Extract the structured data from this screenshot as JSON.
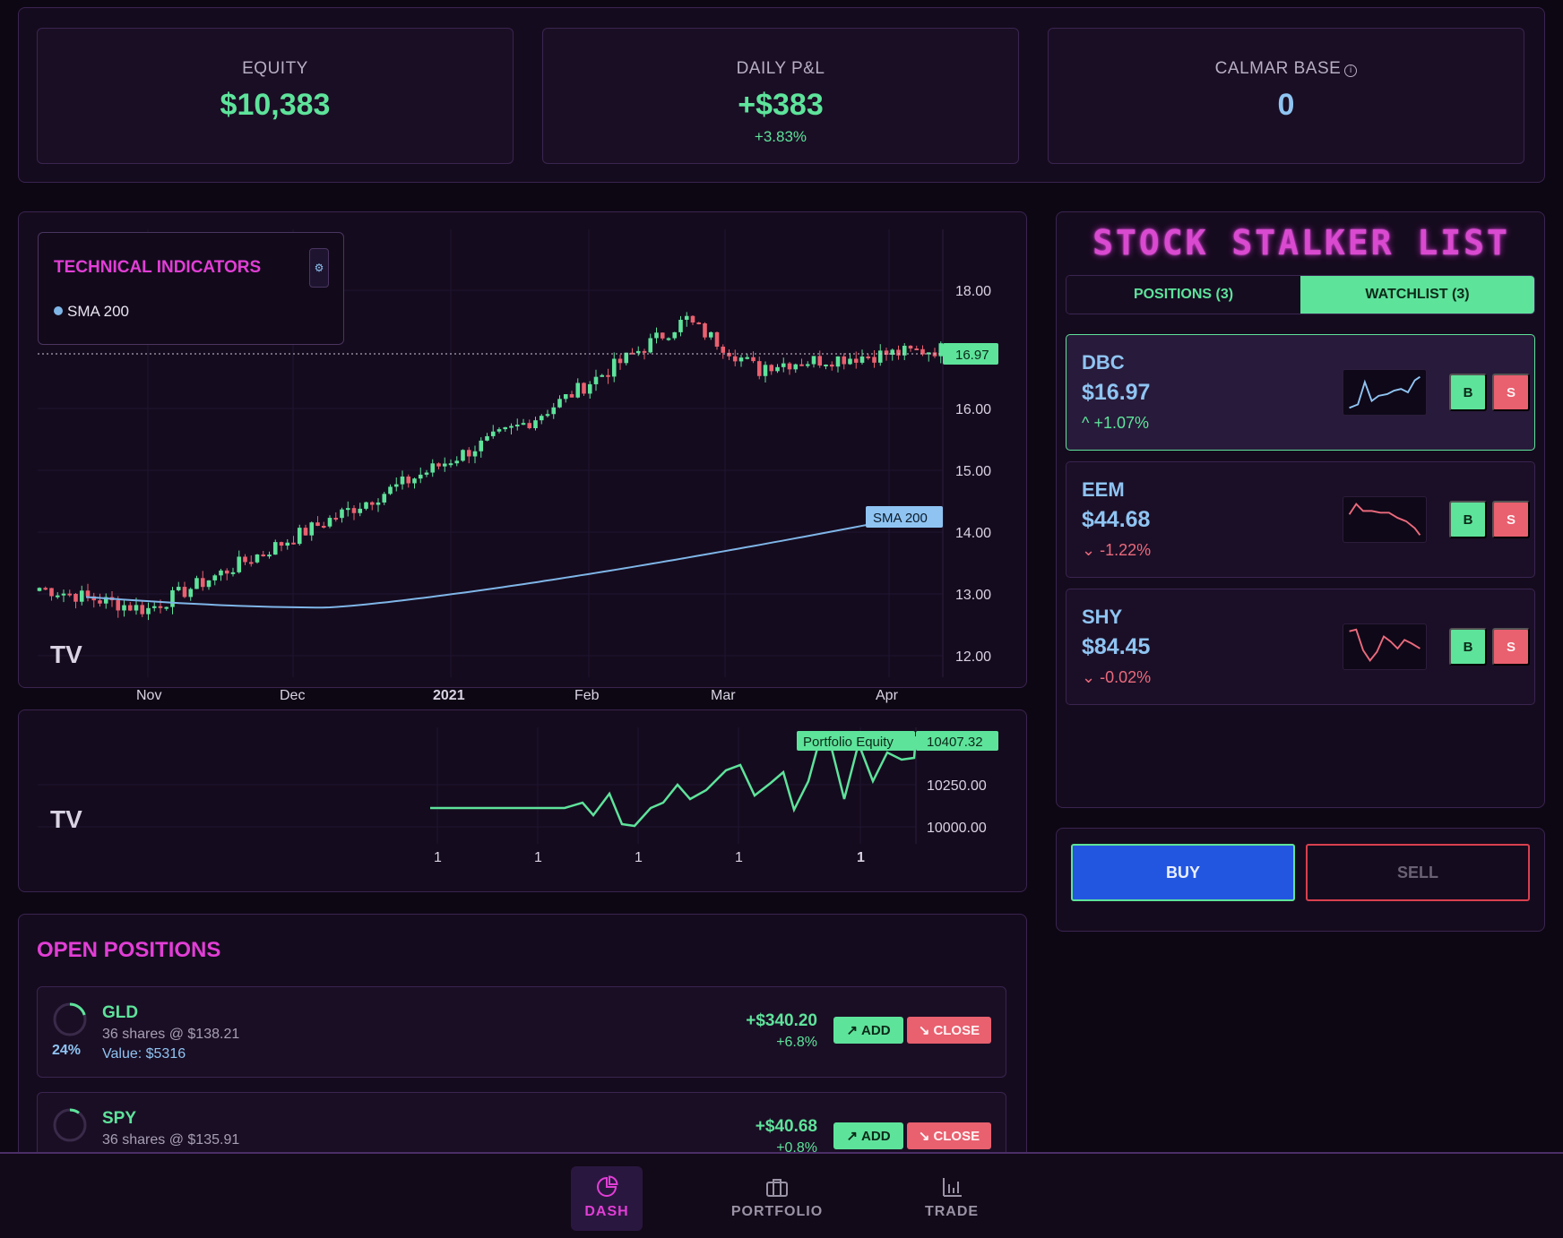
{
  "stats": {
    "equity": {
      "label": "EQUITY",
      "value": "$10,383"
    },
    "daily_pnl": {
      "label": "DAILY P&L",
      "value": "+$383",
      "sub": "+3.83%"
    },
    "calmar": {
      "label": "CALMAR BASE",
      "value": "0",
      "icon": "info-icon"
    }
  },
  "indicators": {
    "title": "TECHNICAL INDICATORS",
    "gear": "⚙",
    "items": [
      "SMA 200"
    ]
  },
  "chart_data": [
    {
      "type": "candlestick",
      "y_ticks": [
        "18.00",
        "16.00",
        "15.00",
        "14.00",
        "13.00",
        "12.00"
      ],
      "x_ticks": [
        "Nov",
        "Dec",
        "2021",
        "Feb",
        "Mar",
        "Apr"
      ],
      "current_price_label": "16.97",
      "overlay_label": "SMA 200",
      "watermark": "TV",
      "series": [
        {
          "name": "SMA 200",
          "color": "#7fb6e8"
        }
      ]
    },
    {
      "type": "line",
      "y_ticks": [
        "10250.00",
        "10000.00"
      ],
      "x_ticks": [
        "1",
        "1",
        "1",
        "1",
        "1"
      ],
      "series_label": "Portfolio Equity",
      "last_value_label": "10407.32",
      "color": "#5ee39b"
    }
  ],
  "positions": {
    "title": "OPEN POSITIONS",
    "add_label": "ADD",
    "close_label": "CLOSE",
    "rows": [
      {
        "symbol": "GLD",
        "shares": "36 shares @ $138.21",
        "value": "Value: $5316",
        "pct": "24%",
        "pnl": "+$340.20",
        "pnl_pct": "+6.8%"
      },
      {
        "symbol": "SPY",
        "shares": "36 shares @ $135.91",
        "value": "",
        "pct": "",
        "pnl": "+$40.68",
        "pnl_pct": "+0.8%"
      }
    ]
  },
  "stalker": {
    "title": "STOCK STALKER LIST",
    "tabs": {
      "positions": "POSITIONS (3)",
      "watchlist": "WATCHLIST (3)"
    },
    "buy_short": "B",
    "sell_short": "S",
    "items": [
      {
        "symbol": "DBC",
        "price": "$16.97",
        "change": "+1.07%",
        "arrow": "^",
        "direction": "up"
      },
      {
        "symbol": "EEM",
        "price": "$44.68",
        "change": "-1.22%",
        "arrow": "⌄",
        "direction": "down"
      },
      {
        "symbol": "SHY",
        "price": "$84.45",
        "change": "-0.02%",
        "arrow": "⌄",
        "direction": "down"
      }
    ]
  },
  "order": {
    "buy": "BUY",
    "sell": "SELL"
  },
  "nav": {
    "dash": "DASH",
    "portfolio": "PORTFOLIO",
    "trade": "TRADE"
  }
}
